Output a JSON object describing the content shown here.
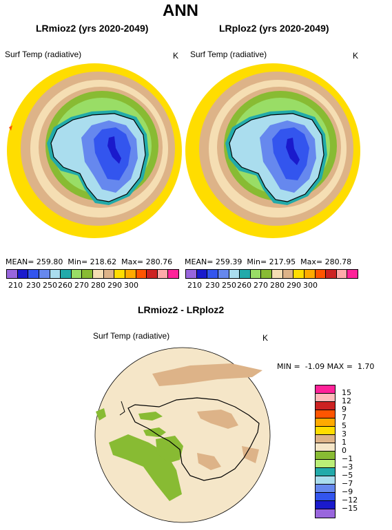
{
  "page_title": "ANN",
  "panel_left": {
    "title": "LRmioz2 (yrs 2020-2049)",
    "variable": "Surf Temp (radiative)",
    "unit": "K",
    "mean_label": "MEAN=",
    "mean": "259.80",
    "min_label": "Min=",
    "min": "218.62",
    "max_label": "Max=",
    "max": "280.76"
  },
  "panel_right": {
    "title": "LRploz2 (yrs 2020-2049)",
    "variable": "Surf Temp (radiative)",
    "unit": "K",
    "mean_label": "MEAN=",
    "mean": "259.39",
    "min_label": "Min=",
    "min": "217.95",
    "max_label": "Max=",
    "max": "280.78"
  },
  "abs_colorbar": {
    "colors": [
      "#9966dd",
      "#1a1acc",
      "#3355ee",
      "#6688ee",
      "#aaddee",
      "#22aaaa",
      "#99dd66",
      "#88bb33",
      "#f5deb3",
      "#ddb388",
      "#ffdd00",
      "#ffaa00",
      "#ff5500",
      "#cc2222",
      "#ffaaaa",
      "#ff2299"
    ],
    "ticks": [
      "210",
      "230",
      "250",
      "260",
      "270",
      "280",
      "290",
      "300"
    ],
    "ticks_offset": [
      "220",
      "240",
      "255",
      "265",
      "275",
      "285",
      "295"
    ]
  },
  "diff_panel": {
    "title": "LRmioz2 - LRploz2",
    "variable": "Surf Temp (radiative)",
    "unit": "K",
    "min_label": "MIN =",
    "min": "-1.09",
    "max_label": "MAX =",
    "max": "1.70"
  },
  "diff_colorbar": {
    "colors": [
      "#ff2299",
      "#ffbbbb",
      "#cc2222",
      "#ff5500",
      "#ffaa00",
      "#ffdd00",
      "#ddb388",
      "#f5e6c8",
      "#88bb33",
      "#bbee77",
      "#22aaaa",
      "#aaddee",
      "#6688ee",
      "#3355ee",
      "#1a1acc",
      "#9966dd"
    ],
    "ticks": [
      "15",
      "12",
      "9",
      "7",
      "5",
      "3",
      "1",
      "0",
      "−1",
      "−3",
      "−5",
      "−7",
      "−9",
      "−12",
      "−15"
    ]
  }
}
